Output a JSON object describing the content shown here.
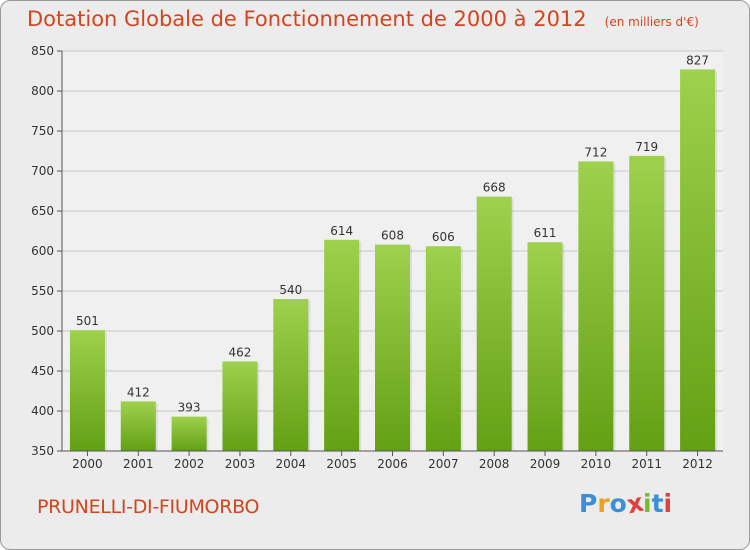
{
  "chart_data": {
    "type": "bar",
    "title": "Dotation Globale de Fonctionnement de 2000 à 2012",
    "subtitle": "(en milliers d'€)",
    "categories": [
      "2000",
      "2001",
      "2002",
      "2003",
      "2004",
      "2005",
      "2006",
      "2007",
      "2008",
      "2009",
      "2010",
      "2011",
      "2012"
    ],
    "values": [
      501,
      412,
      393,
      462,
      540,
      614,
      608,
      606,
      668,
      611,
      712,
      719,
      827
    ],
    "ylim": [
      350,
      850
    ],
    "yticks": [
      350,
      400,
      450,
      500,
      550,
      600,
      650,
      700,
      750,
      800,
      850
    ],
    "grid": true,
    "bar_color": "#7cbb2a"
  },
  "commune": "PRUNELLI-DI-FIUMORBO",
  "logo": {
    "letters": [
      "P",
      "r",
      "o",
      "x",
      "i",
      "t",
      "i"
    ],
    "colors": [
      "#3a8fd6",
      "#f0a020",
      "#3a8fd6",
      "#e04040",
      "#7cbb2a",
      "#3a8fd6",
      "#e04040"
    ]
  }
}
